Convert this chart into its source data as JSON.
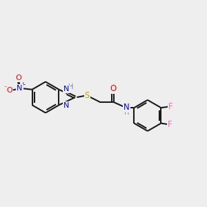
{
  "bg_color": "#eeeeee",
  "bond_color": "#1a1a1a",
  "bond_width": 1.5,
  "atom_colors": {
    "N": "#0000ff",
    "O": "#ff0000",
    "S": "#bbaa00",
    "F": "#ff69b4",
    "H": "#708090",
    "C": "#1a1a1a"
  },
  "xlim": [
    0,
    10
  ],
  "ylim": [
    0,
    10
  ],
  "ring_r": 0.75
}
